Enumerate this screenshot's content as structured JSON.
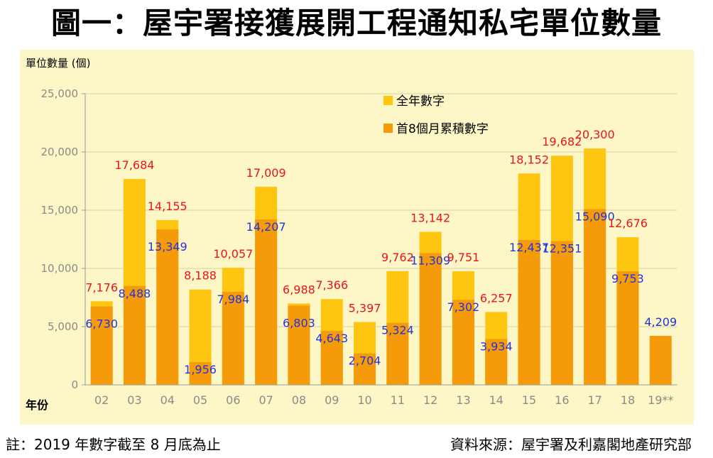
{
  "title": "圖一：屋宇署接獲展開工程通知私宅單位數量",
  "note": "註：2019 年數字截至 8 月底為止",
  "source": "資料來源：屋宇署及利嘉閣地產研究部",
  "colors": {
    "full_year": "#ffc611",
    "first_8_months": "#f59a08",
    "full_label": "#e8141e",
    "cum_label": "#2233dd",
    "panel": "#fdf7c7"
  },
  "chart_data": {
    "type": "bar",
    "ylabel": "單位數量 (個)",
    "xlabel": "年份",
    "ylim": [
      0,
      25000
    ],
    "yticks": [
      0,
      5000,
      10000,
      15000,
      20000,
      25000
    ],
    "ytick_labels": [
      "0",
      "5,000",
      "10,000",
      "15,000",
      "20,000",
      "25,000"
    ],
    "grid": true,
    "legend_position": "top-right",
    "categories": [
      "02",
      "03",
      "04",
      "05",
      "06",
      "07",
      "08",
      "09",
      "10",
      "11",
      "12",
      "13",
      "14",
      "15",
      "16",
      "17",
      "18",
      "19**"
    ],
    "series": [
      {
        "name": "全年數字",
        "values": [
          7176,
          17684,
          14155,
          8188,
          10057,
          17009,
          6988,
          7366,
          5397,
          9762,
          13142,
          9751,
          6257,
          18152,
          19682,
          20300,
          12676,
          null
        ],
        "labels": [
          "7,176",
          "17,684",
          "14,155",
          "8,188",
          "10,057",
          "17,009",
          "6,988",
          "7,366",
          "5,397",
          "9,762",
          "13,142",
          "9,751",
          "6,257",
          "18,152",
          "19,682",
          "20,300",
          "12,676",
          ""
        ]
      },
      {
        "name": "首8個月累積數字",
        "values": [
          6730,
          8488,
          13349,
          1956,
          7984,
          14207,
          6803,
          4643,
          2704,
          5324,
          11309,
          7302,
          3934,
          12437,
          12351,
          15090,
          9753,
          4209
        ],
        "labels": [
          "6,730",
          "8,488",
          "13,349",
          "1,956",
          "7,984",
          "14,207",
          "6,803",
          "4,643",
          "2,704",
          "5,324",
          "11,309",
          "7,302",
          "3,934",
          "12,437",
          "12,351",
          "15,090",
          "9,753",
          "4,209"
        ]
      }
    ]
  }
}
